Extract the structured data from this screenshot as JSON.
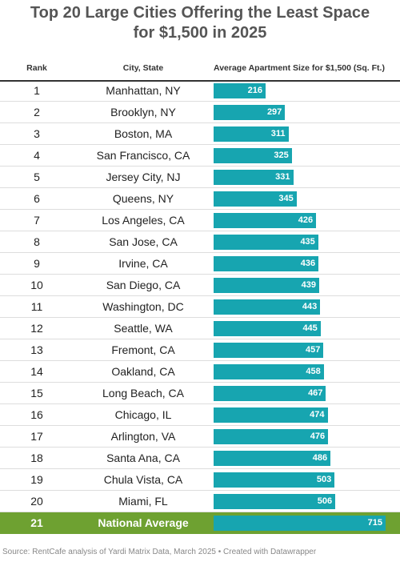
{
  "title_line1": "Top 20 Large Cities Offering the Least Space",
  "title_line2": "for $1,500 in 2025",
  "source": "Source: RentCafe analysis of Yardi Matrix Data, March 2025 • Created with Datawrapper",
  "colors": {
    "bar": "#17a5b0",
    "highlight": "#6ea131"
  },
  "chart_data": {
    "type": "bar",
    "orientation": "horizontal",
    "title": "Top 20 Large Cities Offering the Least Space for $1,500 in 2025",
    "columns": [
      "Rank",
      "City, State",
      "Average Apartment Size for $1,500 (Sq. Ft.)"
    ],
    "xlim": [
      0,
      715
    ],
    "highlight_rank": "21",
    "rows": [
      {
        "rank": "1",
        "city": "Manhattan, NY",
        "value": 216
      },
      {
        "rank": "2",
        "city": "Brooklyn, NY",
        "value": 297
      },
      {
        "rank": "3",
        "city": "Boston, MA",
        "value": 311
      },
      {
        "rank": "4",
        "city": "San Francisco, CA",
        "value": 325
      },
      {
        "rank": "5",
        "city": "Jersey City, NJ",
        "value": 331
      },
      {
        "rank": "6",
        "city": "Queens, NY",
        "value": 345
      },
      {
        "rank": "7",
        "city": "Los Angeles, CA",
        "value": 426
      },
      {
        "rank": "8",
        "city": "San Jose, CA",
        "value": 435
      },
      {
        "rank": "9",
        "city": "Irvine, CA",
        "value": 436
      },
      {
        "rank": "10",
        "city": "San Diego, CA",
        "value": 439
      },
      {
        "rank": "11",
        "city": "Washington, DC",
        "value": 443
      },
      {
        "rank": "12",
        "city": "Seattle, WA",
        "value": 445
      },
      {
        "rank": "13",
        "city": "Fremont, CA",
        "value": 457
      },
      {
        "rank": "14",
        "city": "Oakland, CA",
        "value": 458
      },
      {
        "rank": "15",
        "city": "Long Beach, CA",
        "value": 467
      },
      {
        "rank": "16",
        "city": "Chicago, IL",
        "value": 474
      },
      {
        "rank": "17",
        "city": "Arlington, VA",
        "value": 476
      },
      {
        "rank": "18",
        "city": "Santa Ana, CA",
        "value": 486
      },
      {
        "rank": "19",
        "city": "Chula Vista, CA",
        "value": 503
      },
      {
        "rank": "20",
        "city": "Miami, FL",
        "value": 506
      },
      {
        "rank": "21",
        "city": "National Average",
        "value": 715
      }
    ]
  }
}
